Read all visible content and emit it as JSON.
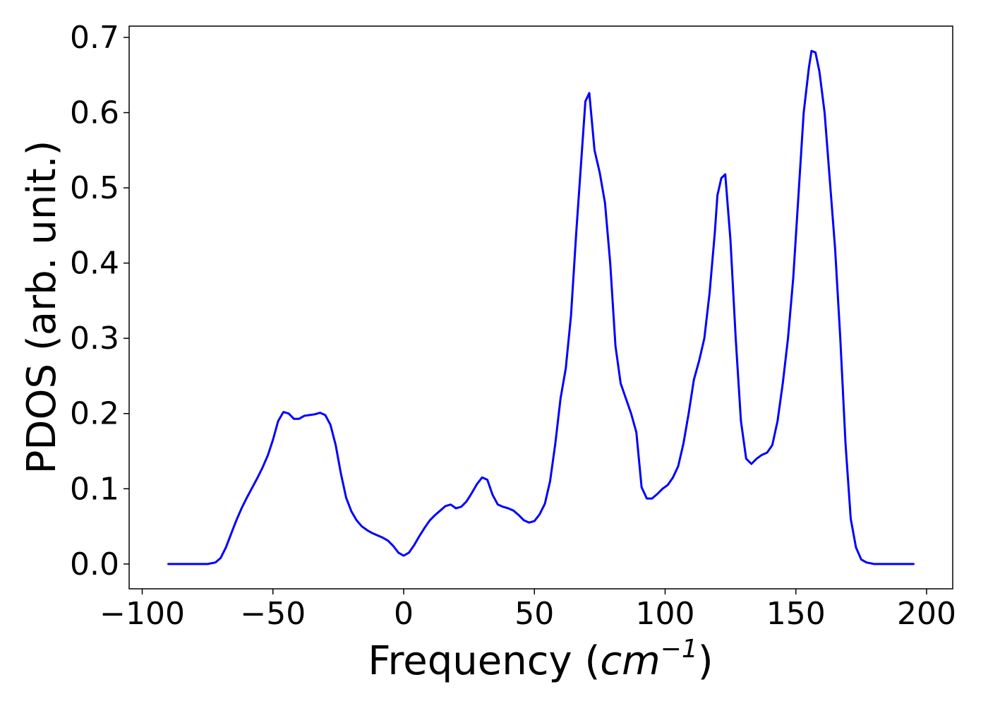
{
  "chart_data": {
    "type": "line",
    "xlabel": "Frequency",
    "xlabel_unit": "cm",
    "xlabel_exp": "−1",
    "ylabel": "PDOS (arb. unit.)",
    "xlim": [
      -105,
      210
    ],
    "ylim": [
      -0.033,
      0.715
    ],
    "x_ticks": [
      -100,
      -50,
      0,
      50,
      100,
      150,
      200
    ],
    "x_tick_labels": [
      "−100",
      "−50",
      "0",
      "50",
      "100",
      "150",
      "200"
    ],
    "y_ticks": [
      0.0,
      0.1,
      0.2,
      0.3,
      0.4,
      0.5,
      0.6,
      0.7
    ],
    "y_tick_labels": [
      "0.0",
      "0.1",
      "0.2",
      "0.3",
      "0.4",
      "0.5",
      "0.6",
      "0.7"
    ],
    "grid": false,
    "series": [
      {
        "color": "#0000ff",
        "x": [
          -90,
          -75,
          -72,
          -70,
          -68,
          -66,
          -64,
          -62,
          -60,
          -58,
          -56,
          -54,
          -52,
          -50,
          -48,
          -46,
          -44,
          -42,
          -40,
          -38,
          -36,
          -34,
          -32,
          -30,
          -28,
          -26,
          -24,
          -22,
          -20,
          -18,
          -16,
          -14,
          -12,
          -10,
          -8,
          -6,
          -4,
          -2,
          0,
          2,
          4,
          6,
          8,
          10,
          12,
          14,
          16,
          18,
          20,
          22,
          24,
          26,
          28,
          30,
          32,
          34,
          36,
          38,
          40,
          42,
          44,
          46,
          48,
          50,
          52,
          54,
          56,
          58,
          60,
          62,
          64,
          66,
          68,
          69.5,
          71,
          73,
          75,
          77,
          79,
          81,
          83,
          85,
          87,
          89,
          91,
          93,
          95,
          97,
          99,
          101,
          103,
          105,
          107,
          109,
          111,
          113,
          115,
          117,
          119,
          120,
          121.5,
          123,
          125,
          127,
          129,
          131,
          133,
          135,
          137,
          139,
          141,
          143,
          145,
          147,
          149,
          151,
          153,
          155,
          156,
          157.5,
          159,
          161,
          163,
          165,
          167,
          169,
          171,
          173,
          175,
          177,
          180,
          185,
          195
        ],
        "y": [
          0,
          0,
          0.002,
          0.008,
          0.022,
          0.04,
          0.058,
          0.074,
          0.088,
          0.101,
          0.114,
          0.128,
          0.144,
          0.165,
          0.19,
          0.202,
          0.2,
          0.193,
          0.193,
          0.197,
          0.198,
          0.199,
          0.201,
          0.198,
          0.185,
          0.158,
          0.12,
          0.088,
          0.07,
          0.058,
          0.05,
          0.045,
          0.041,
          0.038,
          0.035,
          0.031,
          0.024,
          0.015,
          0.011,
          0.015,
          0.025,
          0.037,
          0.048,
          0.058,
          0.065,
          0.071,
          0.077,
          0.079,
          0.074,
          0.076,
          0.083,
          0.094,
          0.106,
          0.115,
          0.112,
          0.092,
          0.079,
          0.076,
          0.074,
          0.071,
          0.065,
          0.058,
          0.055,
          0.057,
          0.066,
          0.08,
          0.11,
          0.16,
          0.22,
          0.26,
          0.33,
          0.44,
          0.54,
          0.615,
          0.626,
          0.55,
          0.52,
          0.48,
          0.4,
          0.29,
          0.24,
          0.22,
          0.2,
          0.175,
          0.102,
          0.087,
          0.087,
          0.093,
          0.1,
          0.105,
          0.115,
          0.13,
          0.16,
          0.2,
          0.245,
          0.27,
          0.3,
          0.36,
          0.44,
          0.49,
          0.513,
          0.518,
          0.43,
          0.3,
          0.19,
          0.14,
          0.133,
          0.14,
          0.145,
          0.148,
          0.158,
          0.19,
          0.24,
          0.3,
          0.38,
          0.49,
          0.6,
          0.66,
          0.682,
          0.68,
          0.655,
          0.6,
          0.51,
          0.42,
          0.3,
          0.16,
          0.06,
          0.022,
          0.006,
          0.002,
          0,
          0,
          0
        ]
      }
    ]
  }
}
